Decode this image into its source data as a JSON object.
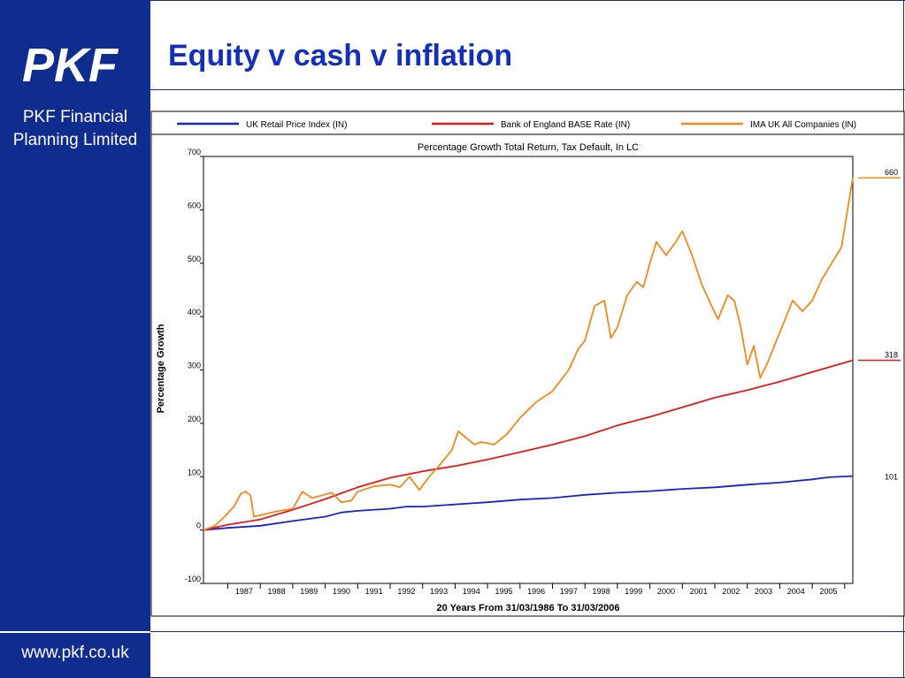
{
  "sidebar": {
    "logo_text": "PKF",
    "company_name_line1": "PKF Financial",
    "company_name_line2": "Planning Limited",
    "website": "www.pkf.co.uk",
    "background_color": "#0f2c8f"
  },
  "slide": {
    "title": "Equity v cash v inflation",
    "title_color": "#1530b8"
  },
  "chart_data": {
    "type": "line",
    "title": "Percentage Growth Total Return, Tax Default, In LC",
    "xlabel": "20 Years From 31/03/1986 To 31/03/2006",
    "ylabel": "Percentage Growth",
    "ylim": [
      -100,
      700
    ],
    "yticks": [
      -100,
      0,
      100,
      200,
      300,
      400,
      500,
      600,
      700
    ],
    "xlim": [
      1986.25,
      2006.25
    ],
    "xtick_labels": [
      "1987",
      "1988",
      "1989",
      "1990",
      "1991",
      "1992",
      "1993",
      "1994",
      "1995",
      "1996",
      "1997",
      "1998",
      "1999",
      "2000",
      "2001",
      "2002",
      "2003",
      "2004",
      "2005"
    ],
    "grid": false,
    "legend_position": "top",
    "series": [
      {
        "name": "UK Retail Price Index (IN)",
        "color": "#1a22c8",
        "end_label": "101",
        "points": [
          [
            1986.25,
            0
          ],
          [
            1987,
            4
          ],
          [
            1988,
            8
          ],
          [
            1989,
            17
          ],
          [
            1990,
            25
          ],
          [
            1990.5,
            33
          ],
          [
            1991,
            36
          ],
          [
            1992,
            40
          ],
          [
            1992.5,
            44
          ],
          [
            1993,
            44
          ],
          [
            1994,
            48
          ],
          [
            1995,
            52
          ],
          [
            1996,
            57
          ],
          [
            1997,
            60
          ],
          [
            1998,
            66
          ],
          [
            1999,
            70
          ],
          [
            2000,
            73
          ],
          [
            2001,
            77
          ],
          [
            2002,
            80
          ],
          [
            2003,
            85
          ],
          [
            2004,
            89
          ],
          [
            2005,
            95
          ],
          [
            2005.5,
            99
          ],
          [
            2006.25,
            101
          ]
        ]
      },
      {
        "name": "Bank of England BASE Rate (IN)",
        "color": "#e21a1a",
        "end_label": "318",
        "points": [
          [
            1986.25,
            0
          ],
          [
            1987,
            10
          ],
          [
            1988,
            20
          ],
          [
            1989,
            38
          ],
          [
            1990,
            58
          ],
          [
            1991,
            80
          ],
          [
            1992,
            98
          ],
          [
            1993,
            110
          ],
          [
            1994,
            120
          ],
          [
            1995,
            132
          ],
          [
            1996,
            146
          ],
          [
            1997,
            160
          ],
          [
            1998,
            176
          ],
          [
            1999,
            196
          ],
          [
            2000,
            212
          ],
          [
            2001,
            230
          ],
          [
            2002,
            248
          ],
          [
            2003,
            262
          ],
          [
            2004,
            278
          ],
          [
            2005,
            296
          ],
          [
            2006.25,
            318
          ]
        ]
      },
      {
        "name": "IMA UK All Companies (IN)",
        "color": "#f08a1e",
        "end_label": "660",
        "points": [
          [
            1986.25,
            0
          ],
          [
            1986.6,
            8
          ],
          [
            1986.9,
            25
          ],
          [
            1987.2,
            45
          ],
          [
            1987.4,
            68
          ],
          [
            1987.55,
            72
          ],
          [
            1987.7,
            65
          ],
          [
            1987.8,
            25
          ],
          [
            1988,
            28
          ],
          [
            1988.5,
            35
          ],
          [
            1989,
            40
          ],
          [
            1989.3,
            72
          ],
          [
            1989.6,
            60
          ],
          [
            1989.9,
            65
          ],
          [
            1990.2,
            70
          ],
          [
            1990.5,
            52
          ],
          [
            1990.8,
            55
          ],
          [
            1991,
            72
          ],
          [
            1991.5,
            82
          ],
          [
            1992,
            85
          ],
          [
            1992.3,
            80
          ],
          [
            1992.6,
            100
          ],
          [
            1992.9,
            75
          ],
          [
            1993.2,
            100
          ],
          [
            1993.5,
            120
          ],
          [
            1993.9,
            150
          ],
          [
            1994.1,
            185
          ],
          [
            1994.3,
            175
          ],
          [
            1994.6,
            160
          ],
          [
            1994.8,
            165
          ],
          [
            1995.2,
            160
          ],
          [
            1995.6,
            180
          ],
          [
            1996,
            210
          ],
          [
            1996.5,
            240
          ],
          [
            1997,
            260
          ],
          [
            1997.5,
            300
          ],
          [
            1997.8,
            340
          ],
          [
            1998,
            355
          ],
          [
            1998.3,
            420
          ],
          [
            1998.6,
            430
          ],
          [
            1998.8,
            360
          ],
          [
            1999,
            380
          ],
          [
            1999.3,
            440
          ],
          [
            1999.6,
            465
          ],
          [
            1999.8,
            455
          ],
          [
            2000,
            500
          ],
          [
            2000.2,
            540
          ],
          [
            2000.5,
            515
          ],
          [
            2000.8,
            540
          ],
          [
            2001,
            560
          ],
          [
            2001.3,
            515
          ],
          [
            2001.6,
            460
          ],
          [
            2001.9,
            420
          ],
          [
            2002.1,
            395
          ],
          [
            2002.4,
            440
          ],
          [
            2002.6,
            430
          ],
          [
            2002.8,
            380
          ],
          [
            2003,
            310
          ],
          [
            2003.2,
            345
          ],
          [
            2003.4,
            285
          ],
          [
            2003.6,
            310
          ],
          [
            2004,
            370
          ],
          [
            2004.4,
            430
          ],
          [
            2004.7,
            410
          ],
          [
            2005,
            430
          ],
          [
            2005.3,
            470
          ],
          [
            2005.6,
            500
          ],
          [
            2005.9,
            530
          ],
          [
            2006.25,
            660
          ]
        ]
      }
    ]
  }
}
